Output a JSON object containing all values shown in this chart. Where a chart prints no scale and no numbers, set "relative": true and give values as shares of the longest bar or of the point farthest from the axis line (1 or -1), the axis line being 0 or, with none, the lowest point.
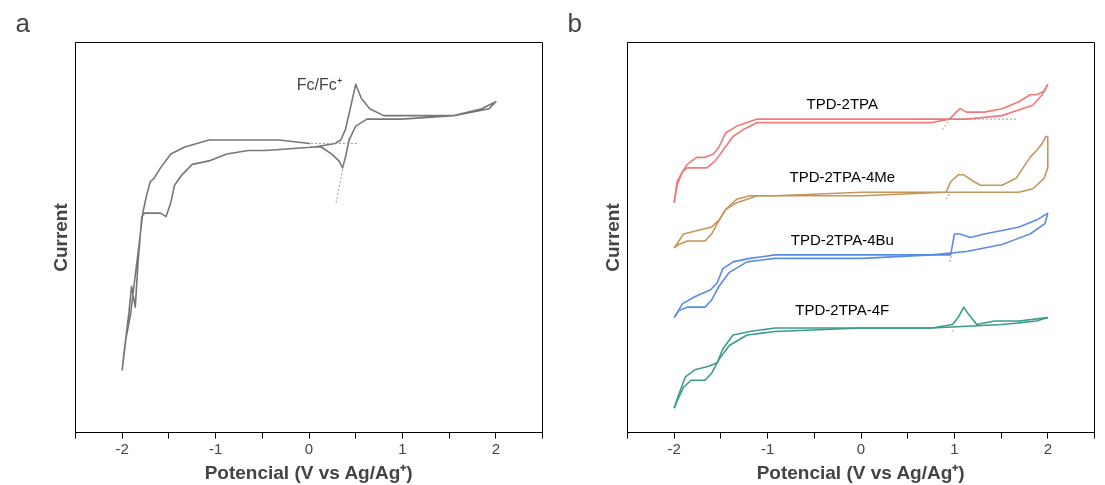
{
  "chart_data": [
    {
      "type": "line",
      "title": "a",
      "xlabel": "Potencial (V vs Ag/Ag⁺)",
      "ylabel": "Current",
      "relative": true,
      "xlim": [
        -2.5,
        2.5
      ],
      "xticks": [
        {
          "value": -2.5,
          "label": null
        },
        -2,
        {
          "value": -1.5,
          "label": null
        },
        -1,
        {
          "value": -0.5,
          "label": null
        },
        0,
        {
          "value": 0.5,
          "label": null
        },
        1,
        {
          "value": 1.5,
          "label": null
        },
        2,
        {
          "value": 2.5,
          "label": null
        }
      ],
      "grid": false,
      "legend": false,
      "marker": "none",
      "annotations": [
        "Fc/Fc⁺"
      ],
      "series": [
        {
          "color": "#777777",
          "line_style": "solid",
          "x": [
            0.01,
            -0.32,
            -1.07,
            -1.33,
            -1.48,
            -1.59,
            -1.66,
            -1.7,
            -1.74,
            -1.78,
            -1.81,
            -1.87,
            -1.91,
            -1.96,
            -2.0,
            -1.98,
            -1.93,
            -1.9,
            -1.86,
            -1.83,
            -1.79,
            -1.76,
            -1.59,
            -1.53,
            -1.48,
            -1.44,
            -1.36,
            -1.25,
            -1.07,
            -0.88,
            -0.65,
            -0.58,
            -0.47,
            0.06,
            0.28,
            0.34,
            0.39,
            0.45,
            0.5,
            0.56,
            0.65,
            0.8,
            1.18,
            1.55,
            1.85,
            2.0,
            1.93,
            1.55,
            0.99,
            0.62,
            0.5,
            0.43,
            0.39,
            0.36,
            0.32,
            0.24,
            0.13,
            0.01
          ],
          "values": [
            0.83,
            0.84,
            0.84,
            0.82,
            0.8,
            0.76,
            0.73,
            0.72,
            0.68,
            0.63,
            0.56,
            0.43,
            0.34,
            0.27,
            0.18,
            0.23,
            0.34,
            0.42,
            0.36,
            0.49,
            0.62,
            0.63,
            0.63,
            0.62,
            0.66,
            0.71,
            0.74,
            0.77,
            0.78,
            0.8,
            0.81,
            0.81,
            0.81,
            0.82,
            0.83,
            0.84,
            0.87,
            0.94,
            1.0,
            0.96,
            0.93,
            0.91,
            0.91,
            0.91,
            0.93,
            0.95,
            0.93,
            0.91,
            0.9,
            0.9,
            0.88,
            0.84,
            0.79,
            0.76,
            0.78,
            0.8,
            0.82,
            0.82
          ]
        },
        {
          "color": "#999999",
          "line_style": "dotted",
          "x": [
            0.02,
            0.52
          ],
          "values": [
            0.83,
            0.83
          ]
        },
        {
          "color": "#999999",
          "line_style": "dotted",
          "x": [
            0.29,
            0.43
          ],
          "values": [
            0.66,
            0.85
          ]
        }
      ]
    },
    {
      "type": "line",
      "title": "b",
      "xlabel": "Potencial (V vs Ag/Ag⁺)",
      "ylabel": "Current",
      "relative": true,
      "xlim": [
        -2.5,
        2.5
      ],
      "xticks": [
        {
          "value": -2.5,
          "label": null
        },
        -2,
        {
          "value": -1.5,
          "label": null
        },
        -1,
        {
          "value": -0.5,
          "label": null
        },
        0,
        {
          "value": 0.5,
          "label": null
        },
        1,
        {
          "value": 1.5,
          "label": null
        },
        2,
        {
          "value": 2.5,
          "label": null
        }
      ],
      "grid": false,
      "legend": false,
      "marker": "none",
      "series": [
        {
          "name": "TPD-2TPA",
          "color": "#f07a7a",
          "line_style": "solid",
          "x": [
            -2.0,
            -1.97,
            -1.91,
            -1.86,
            -1.81,
            -1.73,
            -1.65,
            -1.56,
            -1.48,
            -1.37,
            -1.26,
            -1.11,
            -0.74,
            0.01,
            0.76,
            0.95,
            1.02,
            1.06,
            1.13,
            1.32,
            1.51,
            1.69,
            1.81,
            1.88,
            1.96,
            2.0
          ],
          "values": [
            0.66,
            0.71,
            0.75,
            0.76,
            0.76,
            0.76,
            0.76,
            0.78,
            0.81,
            0.85,
            0.87,
            0.89,
            0.89,
            0.89,
            0.89,
            0.9,
            0.92,
            0.93,
            0.92,
            0.92,
            0.93,
            0.95,
            0.97,
            0.97,
            0.98,
            1.0
          ]
        },
        {
          "name": "TPD-2TPA-4Me",
          "color": "#c4965c",
          "line_style": "solid",
          "x": [
            -2.0,
            -1.95,
            -1.86,
            -1.75,
            -1.67,
            -1.6,
            -1.54,
            -1.45,
            -1.33,
            -1.11,
            0.01,
            0.91,
            0.96,
            1.04,
            1.1,
            1.21,
            1.28,
            1.51,
            1.66,
            1.81,
            1.88,
            1.94,
            1.98,
            2.0
          ],
          "values": [
            0.53,
            0.54,
            0.55,
            0.55,
            0.55,
            0.57,
            0.6,
            0.64,
            0.66,
            0.68,
            0.68,
            0.69,
            0.72,
            0.74,
            0.74,
            0.72,
            0.71,
            0.71,
            0.73,
            0.79,
            0.81,
            0.83,
            0.85,
            0.85
          ]
        },
        {
          "name": "TPD-2TPA-4Bu",
          "color": "#5a8ce6",
          "line_style": "solid",
          "x": [
            -2.0,
            -1.95,
            -1.86,
            -1.75,
            -1.67,
            -1.6,
            -1.52,
            -1.41,
            -1.22,
            -0.92,
            0.01,
            0.76,
            0.96,
            1.0,
            1.06,
            1.17,
            1.32,
            1.51,
            1.69,
            1.88,
            2.0
          ],
          "values": [
            0.33,
            0.35,
            0.36,
            0.36,
            0.36,
            0.38,
            0.42,
            0.46,
            0.49,
            0.5,
            0.5,
            0.51,
            0.51,
            0.57,
            0.57,
            0.56,
            0.57,
            0.58,
            0.59,
            0.61,
            0.63
          ]
        },
        {
          "name": "TPD-2TPA-4F",
          "color": "#3c9c8c",
          "line_style": "solid",
          "x": [
            -2.0,
            -1.97,
            -1.9,
            -1.82,
            -1.75,
            -1.67,
            -1.6,
            -1.52,
            -1.41,
            -1.22,
            -0.92,
            0.01,
            0.76,
            0.98,
            1.04,
            1.1,
            1.15,
            1.24,
            1.43,
            1.69,
            2.0
          ],
          "values": [
            0.07,
            0.09,
            0.13,
            0.15,
            0.15,
            0.15,
            0.17,
            0.21,
            0.25,
            0.28,
            0.29,
            0.3,
            0.3,
            0.31,
            0.33,
            0.36,
            0.34,
            0.31,
            0.32,
            0.32,
            0.33
          ]
        },
        {
          "color": "#f07a7a",
          "line_style": "solid",
          "x": [
            2.0,
            1.94,
            1.84,
            1.51,
            1.13,
            0.76,
            0.01,
            -0.36,
            -0.92,
            -1.11,
            -1.33,
            -1.45,
            -1.52,
            -1.58,
            -1.67,
            -1.76,
            -1.86,
            -1.91,
            -1.97,
            -2.0
          ],
          "values": [
            1.0,
            0.97,
            0.94,
            0.91,
            0.9,
            0.9,
            0.9,
            0.9,
            0.9,
            0.9,
            0.88,
            0.86,
            0.82,
            0.8,
            0.79,
            0.79,
            0.77,
            0.75,
            0.72,
            0.66
          ]
        },
        {
          "color": "#c4965c",
          "line_style": "solid",
          "x": [
            2.0,
            2.0,
            1.96,
            1.84,
            1.69,
            1.13,
            0.01,
            -0.92,
            -1.19,
            -1.33,
            -1.45,
            -1.52,
            -1.6,
            -1.75,
            -1.9,
            -2.0
          ],
          "values": [
            0.85,
            0.76,
            0.73,
            0.7,
            0.69,
            0.69,
            0.69,
            0.68,
            0.68,
            0.67,
            0.64,
            0.61,
            0.59,
            0.58,
            0.57,
            0.53
          ]
        },
        {
          "color": "#5a8ce6",
          "line_style": "solid",
          "x": [
            2.0,
            1.97,
            1.81,
            1.51,
            1.13,
            0.76,
            0.01,
            -0.92,
            -1.19,
            -1.37,
            -1.48,
            -1.54,
            -1.61,
            -1.78,
            -1.91,
            -2.0
          ],
          "values": [
            0.63,
            0.6,
            0.57,
            0.54,
            0.52,
            0.51,
            0.51,
            0.51,
            0.5,
            0.49,
            0.47,
            0.43,
            0.41,
            0.39,
            0.37,
            0.33
          ]
        },
        {
          "color": "#3c9c8c",
          "line_style": "solid",
          "x": [
            2.0,
            1.88,
            1.51,
            0.76,
            0.01,
            -0.92,
            -1.19,
            -1.37,
            -1.48,
            -1.54,
            -1.63,
            -1.78,
            -1.88,
            -1.95,
            -2.0
          ],
          "values": [
            0.33,
            0.32,
            0.31,
            0.3,
            0.3,
            0.3,
            0.29,
            0.28,
            0.24,
            0.2,
            0.19,
            0.18,
            0.16,
            0.11,
            0.07
          ]
        },
        {
          "color": "#999999",
          "line_style": "dotted",
          "x": [
            0.61,
            1.66
          ],
          "values": [
            0.9,
            0.9
          ]
        },
        {
          "color": "#999999",
          "line_style": "dotted",
          "x": [
            0.87,
            0.98
          ],
          "values": [
            0.87,
            0.91
          ]
        },
        {
          "color": "#999999",
          "line_style": "dotted",
          "x": [
            0.91,
            0.96
          ],
          "values": [
            0.67,
            0.69
          ]
        },
        {
          "color": "#999999",
          "line_style": "dotted",
          "x": [
            0.95,
            0.98
          ],
          "values": [
            0.49,
            0.52
          ]
        },
        {
          "color": "#999999",
          "line_style": "dotted",
          "x": [
            0.98,
            1.02
          ],
          "values": [
            0.29,
            0.31
          ]
        }
      ]
    }
  ]
}
